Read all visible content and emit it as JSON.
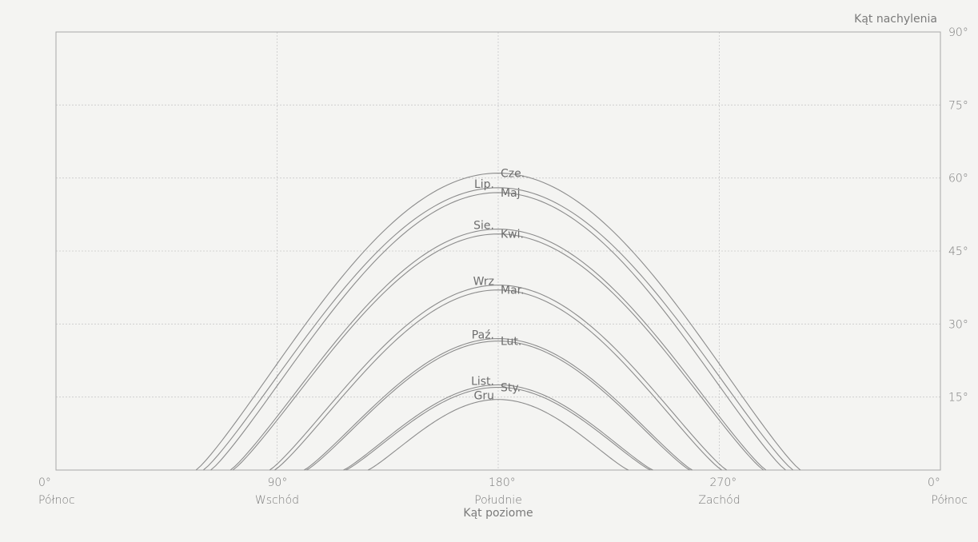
{
  "chart_data": {
    "type": "line",
    "title": "",
    "xlabel": "Kąt poziome",
    "ylabel": "Kąt nachylenia",
    "xlim": [
      0,
      360
    ],
    "ylim": [
      0,
      90
    ],
    "grid": true,
    "x_ticks": [
      {
        "value": 0,
        "deg": "0°",
        "name": "Północ"
      },
      {
        "value": 90,
        "deg": "90°",
        "name": "Wschód"
      },
      {
        "value": 180,
        "deg": "180°",
        "name": "Południe"
      },
      {
        "value": 270,
        "deg": "270°",
        "name": "Zachód"
      },
      {
        "value": 360,
        "deg": "0°",
        "name": "Północ"
      }
    ],
    "y_ticks": [
      {
        "value": 15,
        "label": "15°"
      },
      {
        "value": 30,
        "label": "30°"
      },
      {
        "value": 45,
        "label": "45°"
      },
      {
        "value": 60,
        "label": "60°"
      },
      {
        "value": 75,
        "label": "75°"
      },
      {
        "value": 90,
        "label": "90°"
      }
    ],
    "series": [
      {
        "name": "Cze.",
        "peak": 61,
        "rise": 57,
        "set": 303,
        "label_side": "right"
      },
      {
        "name": "Lip.",
        "peak": 58,
        "rise": 60,
        "set": 300,
        "label_side": "left"
      },
      {
        "name": "Maj",
        "peak": 57,
        "rise": 63,
        "set": 297,
        "label_side": "right"
      },
      {
        "name": "Sie.",
        "peak": 49.5,
        "rise": 71,
        "set": 289,
        "label_side": "left"
      },
      {
        "name": "Kwi.",
        "peak": 48.5,
        "rise": 72,
        "set": 288,
        "label_side": "right"
      },
      {
        "name": "Wrz",
        "peak": 38,
        "rise": 87,
        "set": 273,
        "label_side": "left"
      },
      {
        "name": "Mar.",
        "peak": 37,
        "rise": 89,
        "set": 271,
        "label_side": "right"
      },
      {
        "name": "Paź.",
        "peak": 27,
        "rise": 101,
        "set": 259,
        "label_side": "left"
      },
      {
        "name": "Lut.",
        "peak": 26.5,
        "rise": 102,
        "set": 258,
        "label_side": "right"
      },
      {
        "name": "List.",
        "peak": 17.5,
        "rise": 117,
        "set": 243,
        "label_side": "left"
      },
      {
        "name": "Sty.",
        "peak": 17,
        "rise": 118,
        "set": 242,
        "label_side": "right"
      },
      {
        "name": "Gru",
        "peak": 14.5,
        "rise": 127,
        "set": 233,
        "label_side": "left"
      }
    ]
  }
}
